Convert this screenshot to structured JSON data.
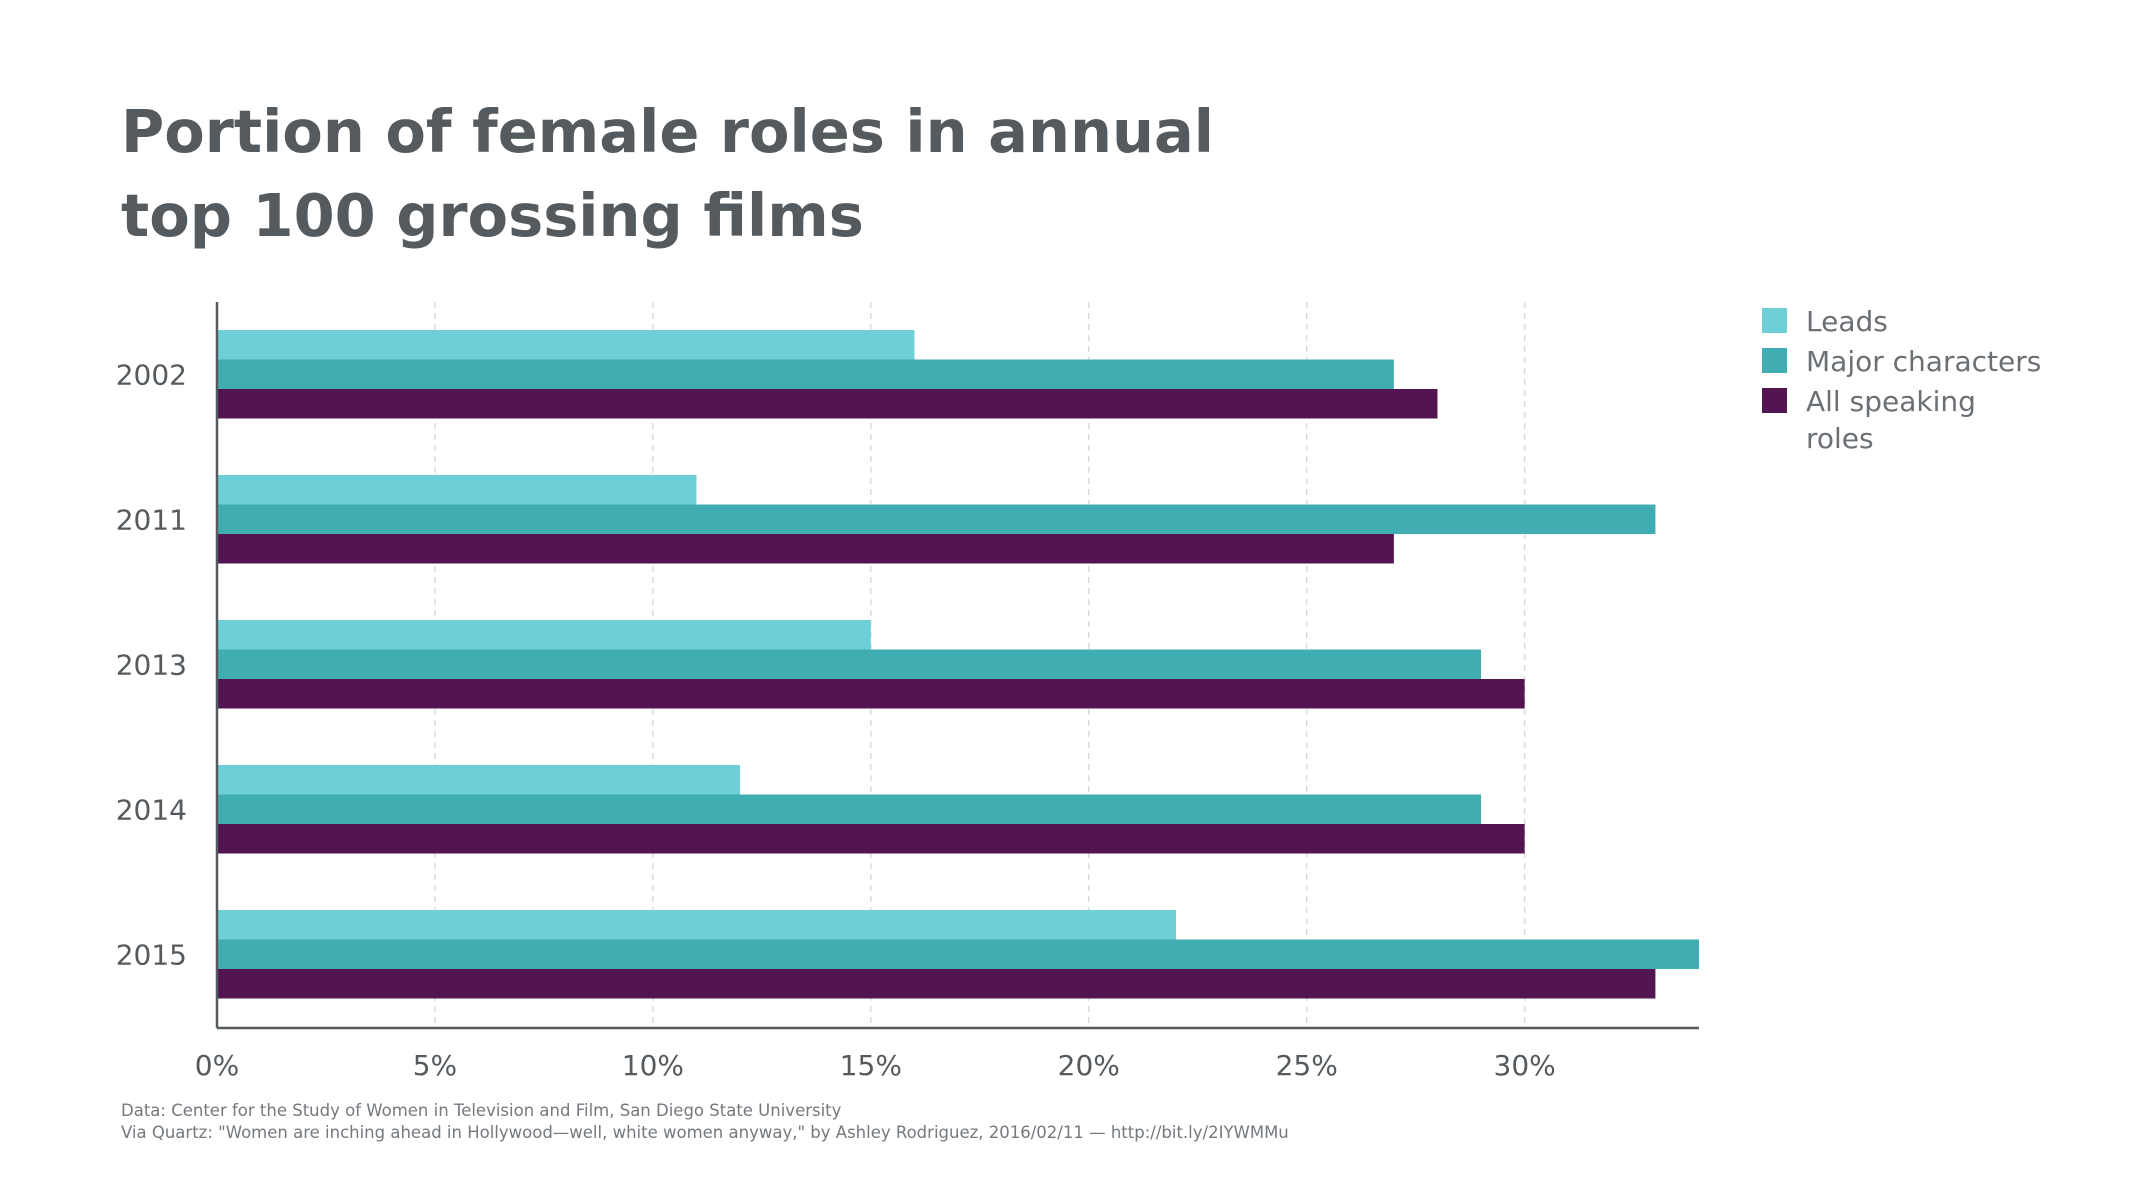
{
  "chart_data": {
    "type": "bar",
    "orientation": "horizontal",
    "title_lines": [
      "Portion of female roles in annual",
      "top 100 grossing films"
    ],
    "categories": [
      "2002",
      "2011",
      "2013",
      "2014",
      "2015"
    ],
    "series": [
      {
        "name": "Leads",
        "color": "#6fcfd6",
        "values": [
          16,
          11,
          15,
          12,
          22
        ]
      },
      {
        "name": "Major characters",
        "color": "#40adb3",
        "values": [
          27,
          33,
          29,
          29,
          34
        ]
      },
      {
        "name": "All speaking roles",
        "color": "#531452",
        "values": [
          28,
          27,
          30,
          30,
          33
        ]
      }
    ],
    "legend_lines": [
      [
        "Leads"
      ],
      [
        "Major characters"
      ],
      [
        "All speaking",
        "roles"
      ]
    ],
    "xaxis": {
      "ticks": [
        0,
        5,
        10,
        15,
        20,
        25,
        30
      ],
      "tick_labels": [
        "0%",
        "5%",
        "10%",
        "15%",
        "20%",
        "25%",
        "30%"
      ],
      "range": [
        0,
        34
      ]
    },
    "xlabel": "",
    "ylabel": "",
    "grid": "vertical dashed",
    "legend_position": "top-right",
    "source_lines": [
      "Data: Center for the Study of Women in Television and Film, San Diego State University",
      "Via Quartz: \"Women are inching ahead in Hollywood—well, white women anyway,\" by Ashley Rodriguez, 2016/02/11 — http://bit.ly/2IYWMMu"
    ]
  }
}
